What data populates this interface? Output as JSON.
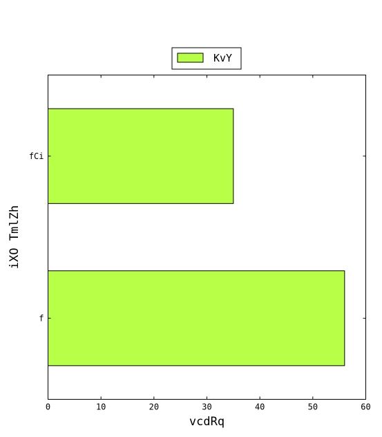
{
  "chart_data": {
    "type": "bar",
    "orientation": "horizontal",
    "categories": [
      "fCi",
      "f"
    ],
    "series": [
      {
        "name": "KvY",
        "values": [
          35,
          56
        ],
        "color": "#b8ff47"
      }
    ],
    "xlabel": "vcdRq",
    "ylabel": "iXO TmlZh",
    "xlim": [
      0,
      60
    ],
    "xticks": [
      0,
      10,
      20,
      30,
      40,
      50,
      60
    ],
    "grid": false,
    "legend": {
      "position": "top-center",
      "label": "KvY"
    }
  }
}
